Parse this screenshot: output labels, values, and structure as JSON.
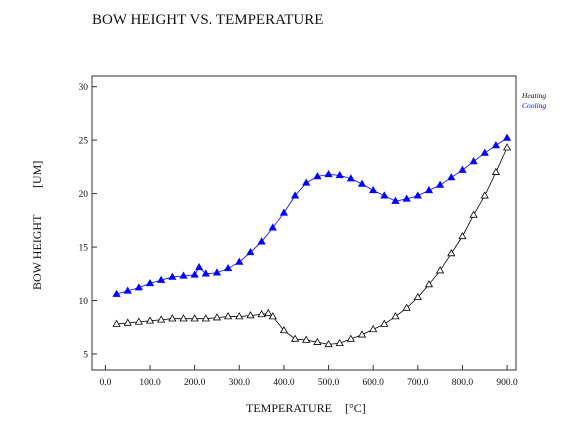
{
  "chart_data": {
    "type": "scatter",
    "title": "BOW HEIGHT VS. TEMPERATURE",
    "xlabel": "TEMPERATURE",
    "xunit": "[°C]",
    "ylabel": "BOW HEIGHT",
    "yunit": "[UM]",
    "xlim": [
      -30,
      920
    ],
    "ylim": [
      3.5,
      31
    ],
    "xticks": [
      "0.0",
      "100.0",
      "200.0",
      "300.0",
      "400.0",
      "500.0",
      "600.0",
      "700.0",
      "800.0",
      "900.0"
    ],
    "yticks": [
      "5",
      "10",
      "15",
      "20",
      "25",
      "30"
    ],
    "grid": false,
    "legend_position": "right",
    "series": [
      {
        "name": "Heating",
        "color": "#000000",
        "marker": "open-triangle",
        "x": [
          25,
          50,
          75,
          100,
          125,
          150,
          175,
          200,
          225,
          250,
          275,
          300,
          325,
          350,
          365,
          375,
          400,
          425,
          450,
          475,
          500,
          525,
          550,
          575,
          600,
          625,
          650,
          675,
          700,
          725,
          750,
          775,
          800,
          825,
          850,
          875,
          900
        ],
        "y": [
          7.8,
          7.9,
          8.0,
          8.1,
          8.2,
          8.3,
          8.3,
          8.3,
          8.3,
          8.4,
          8.5,
          8.5,
          8.6,
          8.7,
          8.8,
          8.5,
          7.2,
          6.4,
          6.3,
          6.1,
          5.9,
          6.0,
          6.4,
          6.8,
          7.3,
          7.8,
          8.5,
          9.3,
          10.3,
          11.5,
          12.8,
          14.4,
          16.0,
          18.0,
          19.8,
          22.0,
          24.3
        ]
      },
      {
        "name": "Cooling",
        "color": "#0000ff",
        "marker": "filled-triangle",
        "x": [
          900,
          875,
          850,
          825,
          800,
          775,
          750,
          725,
          700,
          675,
          650,
          625,
          600,
          575,
          550,
          525,
          500,
          475,
          450,
          425,
          400,
          375,
          350,
          325,
          300,
          275,
          250,
          225,
          210,
          200,
          175,
          150,
          125,
          100,
          75,
          50,
          25
        ],
        "y": [
          25.2,
          24.5,
          23.8,
          23.0,
          22.2,
          21.5,
          20.8,
          20.3,
          19.8,
          19.5,
          19.3,
          19.8,
          20.3,
          20.9,
          21.4,
          21.7,
          21.8,
          21.6,
          21.0,
          19.8,
          18.2,
          16.8,
          15.5,
          14.5,
          13.6,
          13.0,
          12.6,
          12.5,
          13.1,
          12.4,
          12.3,
          12.2,
          11.9,
          11.6,
          11.2,
          10.9,
          10.6
        ]
      }
    ]
  }
}
